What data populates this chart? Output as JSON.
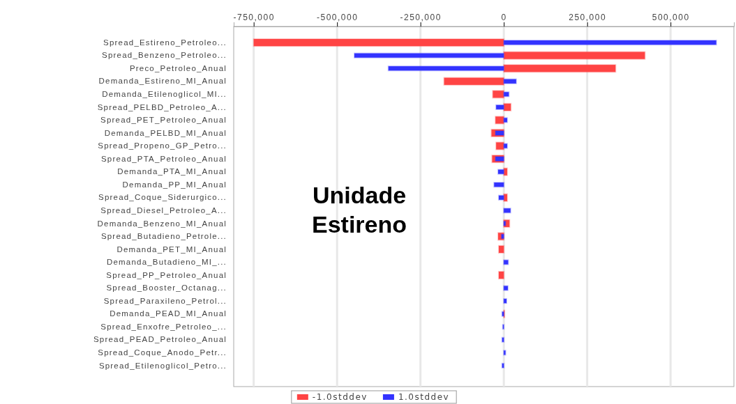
{
  "chart_data": {
    "type": "bar",
    "orientation": "horizontal",
    "categories": [
      "Spread_Estireno_Petroleo...",
      "Spread_Benzeno_Petroleo...",
      "Preco_Petroleo_Anual",
      "Demanda_Estireno_MI_Anual",
      "Demanda_Etilenoglicol_MI...",
      "Spread_PELBD_Petroleo_A...",
      "Spread_PET_Petroleo_Anual",
      "Demanda_PELBD_MI_Anual",
      "Spread_Propeno_GP_Petro...",
      "Spread_PTA_Petroleo_Anual",
      "Demanda_PTA_MI_Anual",
      "Demanda_PP_MI_Anual",
      "Spread_Coque_Siderurgico...",
      "Spread_Diesel_Petroleo_A...",
      "Demanda_Benzeno_MI_Anual",
      "Spread_Butadieno_Petrole...",
      "Demanda_PET_MI_Anual",
      "Demanda_Butadieno_MI_...",
      "Spread_PP_Petroleo_Anual",
      "Spread_Booster_Octanag...",
      "Spread_Paraxileno_Petrol...",
      "Demanda_PEAD_MI_Anual",
      "Spread_Enxofre_Petroleo_...",
      "Spread_PEAD_Petroleo_Anual",
      "Spread_Coque_Anodo_Petr...",
      "Spread_Etilenoglicol_Petro..."
    ],
    "series": [
      {
        "name": "-1.0stddev",
        "color": "#ff4444",
        "values": [
          -750000,
          423000,
          335000,
          -179000,
          -33000,
          21000,
          -25000,
          -37000,
          -23000,
          -35000,
          10000,
          null,
          10000,
          null,
          17000,
          -17000,
          -15000,
          null,
          -15000,
          null,
          null,
          2000,
          null,
          null,
          null,
          null
        ]
      },
      {
        "name": "1.0stddev",
        "color": "#3333ff",
        "values": [
          637000,
          -448000,
          -346000,
          37000,
          15000,
          -23000,
          10000,
          -25000,
          10000,
          -25000,
          -17000,
          -29000,
          -15000,
          20000,
          5000,
          -7000,
          null,
          13000,
          null,
          12000,
          8000,
          -5000,
          -3000,
          -5000,
          5000,
          -5000
        ]
      }
    ],
    "xlim": [
      -810000,
      690000
    ],
    "xticks": [
      {
        "value": -750000,
        "label": "-750,000"
      },
      {
        "value": -500000,
        "label": "-500,000"
      },
      {
        "value": -250000,
        "label": "-250,000"
      },
      0,
      {
        "value": 250000,
        "label": "250,000"
      },
      {
        "value": 500000,
        "label": "500,000"
      }
    ],
    "grid": "x",
    "legend": "bottom",
    "annotations": [
      "Unidade Estireno"
    ]
  }
}
